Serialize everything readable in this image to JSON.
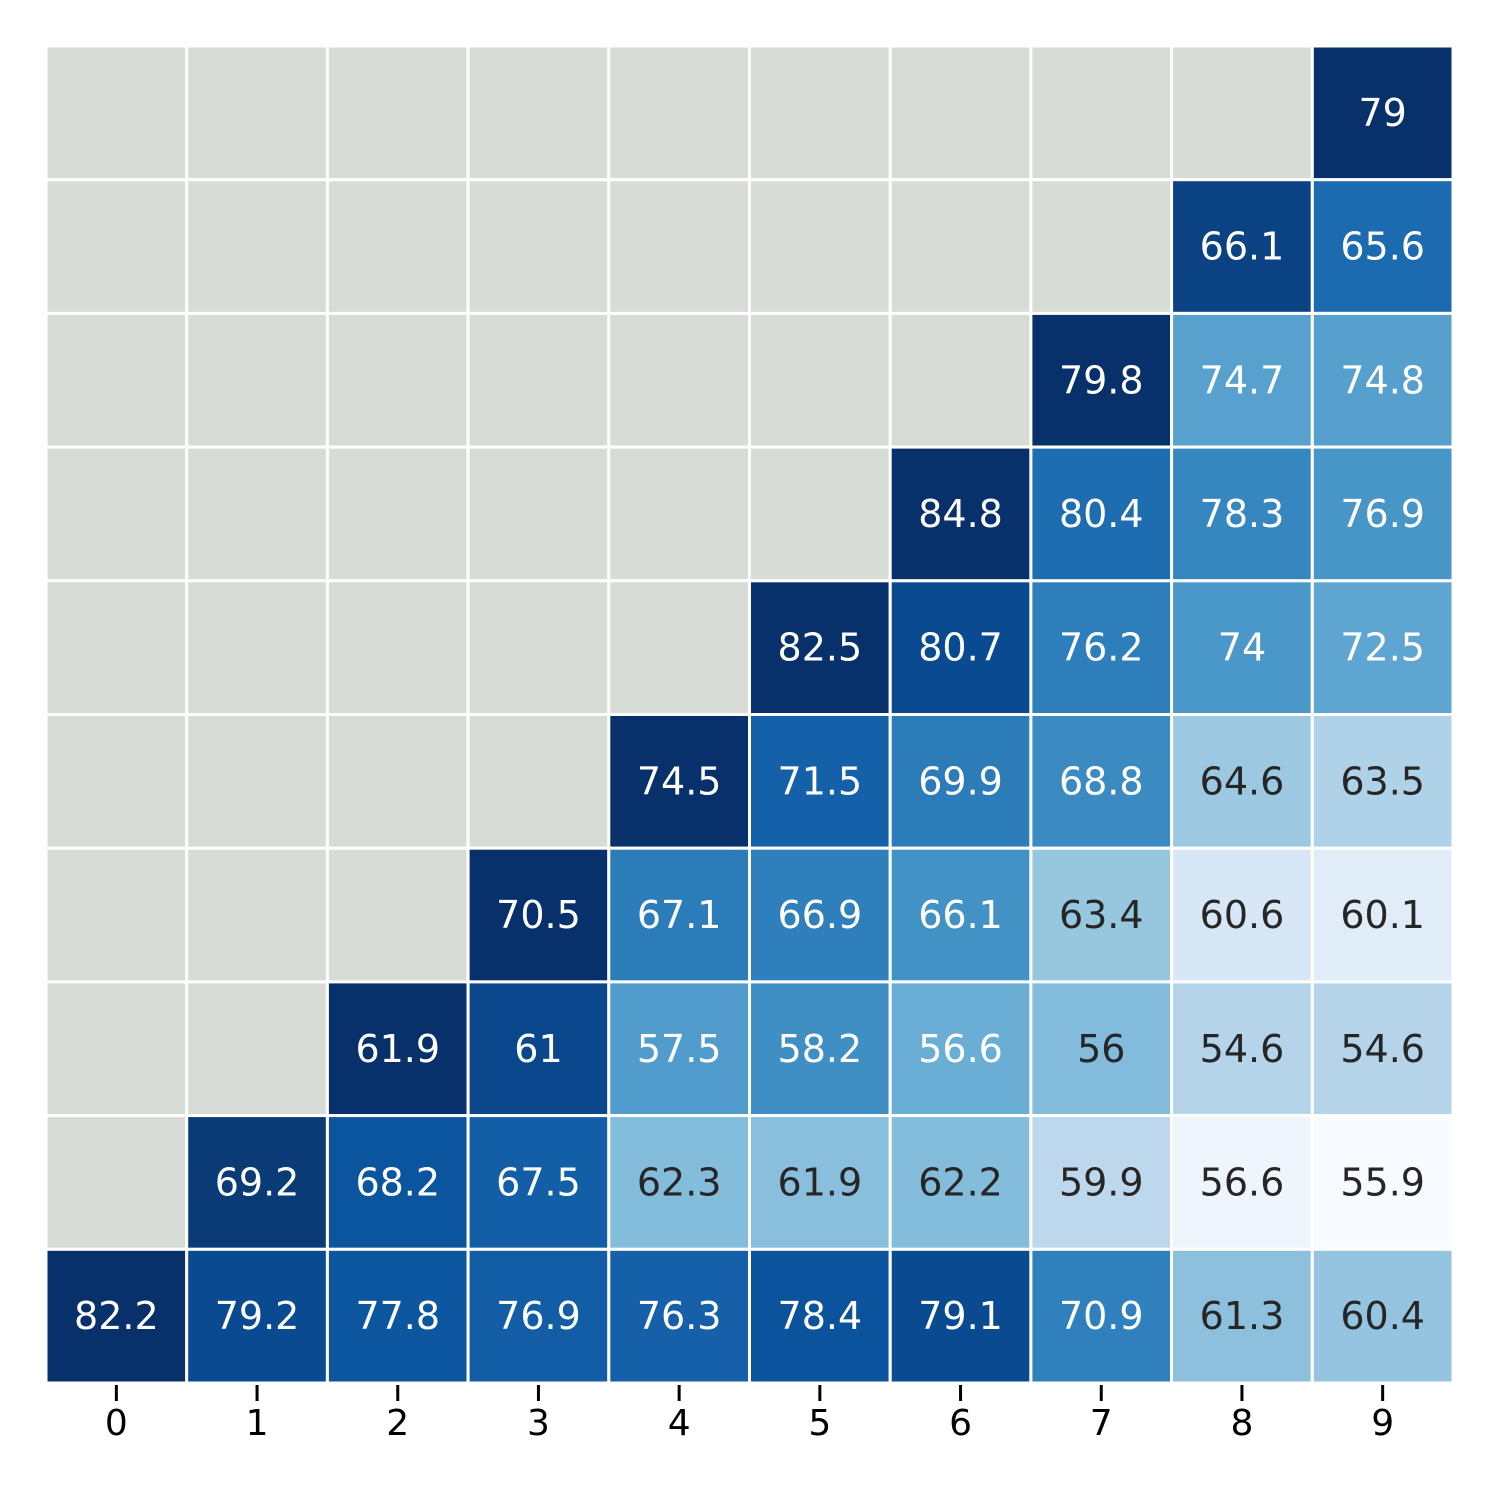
{
  "chart_data": {
    "type": "heatmap",
    "title": "",
    "xlabel": "",
    "ylabel": "",
    "x_ticks": [
      "0",
      "1",
      "2",
      "3",
      "4",
      "5",
      "6",
      "7",
      "8",
      "9"
    ],
    "y_ticks": [],
    "colormap": "Blues (per-row scaling)",
    "missing_color": "#d8dcd7",
    "grid_line_color": "#ffffff",
    "rows": [
      [
        null,
        null,
        null,
        null,
        null,
        null,
        null,
        null,
        null,
        79
      ],
      [
        null,
        null,
        null,
        null,
        null,
        null,
        null,
        null,
        66.1,
        65.6
      ],
      [
        null,
        null,
        null,
        null,
        null,
        null,
        null,
        79.8,
        74.7,
        74.8
      ],
      [
        null,
        null,
        null,
        null,
        null,
        null,
        84.8,
        80.4,
        78.3,
        76.9
      ],
      [
        null,
        null,
        null,
        null,
        null,
        82.5,
        80.7,
        76.2,
        74,
        72.5
      ],
      [
        null,
        null,
        null,
        null,
        74.5,
        71.5,
        69.9,
        68.8,
        64.6,
        63.5
      ],
      [
        null,
        null,
        null,
        70.5,
        67.1,
        66.9,
        66.1,
        63.4,
        60.6,
        60.1
      ],
      [
        null,
        null,
        61.9,
        61,
        57.5,
        58.2,
        56.6,
        56,
        54.6,
        54.6
      ],
      [
        null,
        69.2,
        68.2,
        67.5,
        62.3,
        61.9,
        62.2,
        59.9,
        56.6,
        55.9
      ],
      [
        82.2,
        79.2,
        77.8,
        76.9,
        76.3,
        78.4,
        79.1,
        70.9,
        61.3,
        60.4
      ]
    ],
    "cell_colors": [
      [
        null,
        null,
        null,
        null,
        null,
        null,
        null,
        null,
        null,
        "#08306b"
      ],
      [
        null,
        null,
        null,
        null,
        null,
        null,
        null,
        null,
        "#0b4283",
        "#1c6ab0"
      ],
      [
        null,
        null,
        null,
        null,
        null,
        null,
        null,
        "#08306b",
        "#58a1cf",
        "#57a0ce"
      ],
      [
        null,
        null,
        null,
        null,
        null,
        null,
        "#08306b",
        "#1f6db1",
        "#3686c0",
        "#4896c8"
      ],
      [
        null,
        null,
        null,
        null,
        null,
        "#08306b",
        "#0a4a90",
        "#2e7ebc",
        "#4a98c9",
        "#5ea6d1"
      ],
      [
        null,
        null,
        null,
        null,
        "#08306b",
        "#1561a9",
        "#2c7cba",
        "#3b8bc2",
        "#9cc9e1",
        "#b0d2e8"
      ],
      [
        null,
        null,
        null,
        "#08306b",
        "#2c7cba",
        "#2f7fbc",
        "#4292c6",
        "#97c6df",
        "#d8e7f5",
        "#e0ecf8"
      ],
      [
        null,
        null,
        "#08306b",
        "#0b478d",
        "#519ccc",
        "#3f8fc5",
        "#6aaed6",
        "#82bbdb",
        "#b5d4e9",
        "#b5d4e9"
      ],
      [
        null,
        "#0a3b76",
        "#0b559f",
        "#135fa7",
        "#84bcdb",
        "#89bedc",
        "#84bcdb",
        "#bdd7ec",
        "#eef5fc",
        "#f7fbff"
      ],
      [
        "#08306b",
        "#0a4a90",
        "#0c56a0",
        "#125da6",
        "#1560a8",
        "#0b549d",
        "#0a4a90",
        "#3080bd",
        "#8dc0dd",
        "#94c4df"
      ]
    ],
    "text_colors": [
      [
        null,
        null,
        null,
        null,
        null,
        null,
        null,
        null,
        null,
        "#ffffff"
      ],
      [
        null,
        null,
        null,
        null,
        null,
        null,
        null,
        null,
        "#ffffff",
        "#ffffff"
      ],
      [
        null,
        null,
        null,
        null,
        null,
        null,
        null,
        "#ffffff",
        "#ffffff",
        "#ffffff"
      ],
      [
        null,
        null,
        null,
        null,
        null,
        null,
        "#ffffff",
        "#ffffff",
        "#ffffff",
        "#ffffff"
      ],
      [
        null,
        null,
        null,
        null,
        null,
        "#ffffff",
        "#ffffff",
        "#ffffff",
        "#ffffff",
        "#ffffff"
      ],
      [
        null,
        null,
        null,
        null,
        "#ffffff",
        "#ffffff",
        "#ffffff",
        "#ffffff",
        "#262626",
        "#262626"
      ],
      [
        null,
        null,
        null,
        "#ffffff",
        "#ffffff",
        "#ffffff",
        "#ffffff",
        "#262626",
        "#262626",
        "#262626"
      ],
      [
        null,
        null,
        "#ffffff",
        "#ffffff",
        "#ffffff",
        "#ffffff",
        "#ffffff",
        "#262626",
        "#262626",
        "#262626"
      ],
      [
        null,
        "#ffffff",
        "#ffffff",
        "#ffffff",
        "#262626",
        "#262626",
        "#262626",
        "#262626",
        "#262626",
        "#262626"
      ],
      [
        "#ffffff",
        "#ffffff",
        "#ffffff",
        "#ffffff",
        "#ffffff",
        "#ffffff",
        "#ffffff",
        "#ffffff",
        "#262626",
        "#262626"
      ]
    ]
  }
}
